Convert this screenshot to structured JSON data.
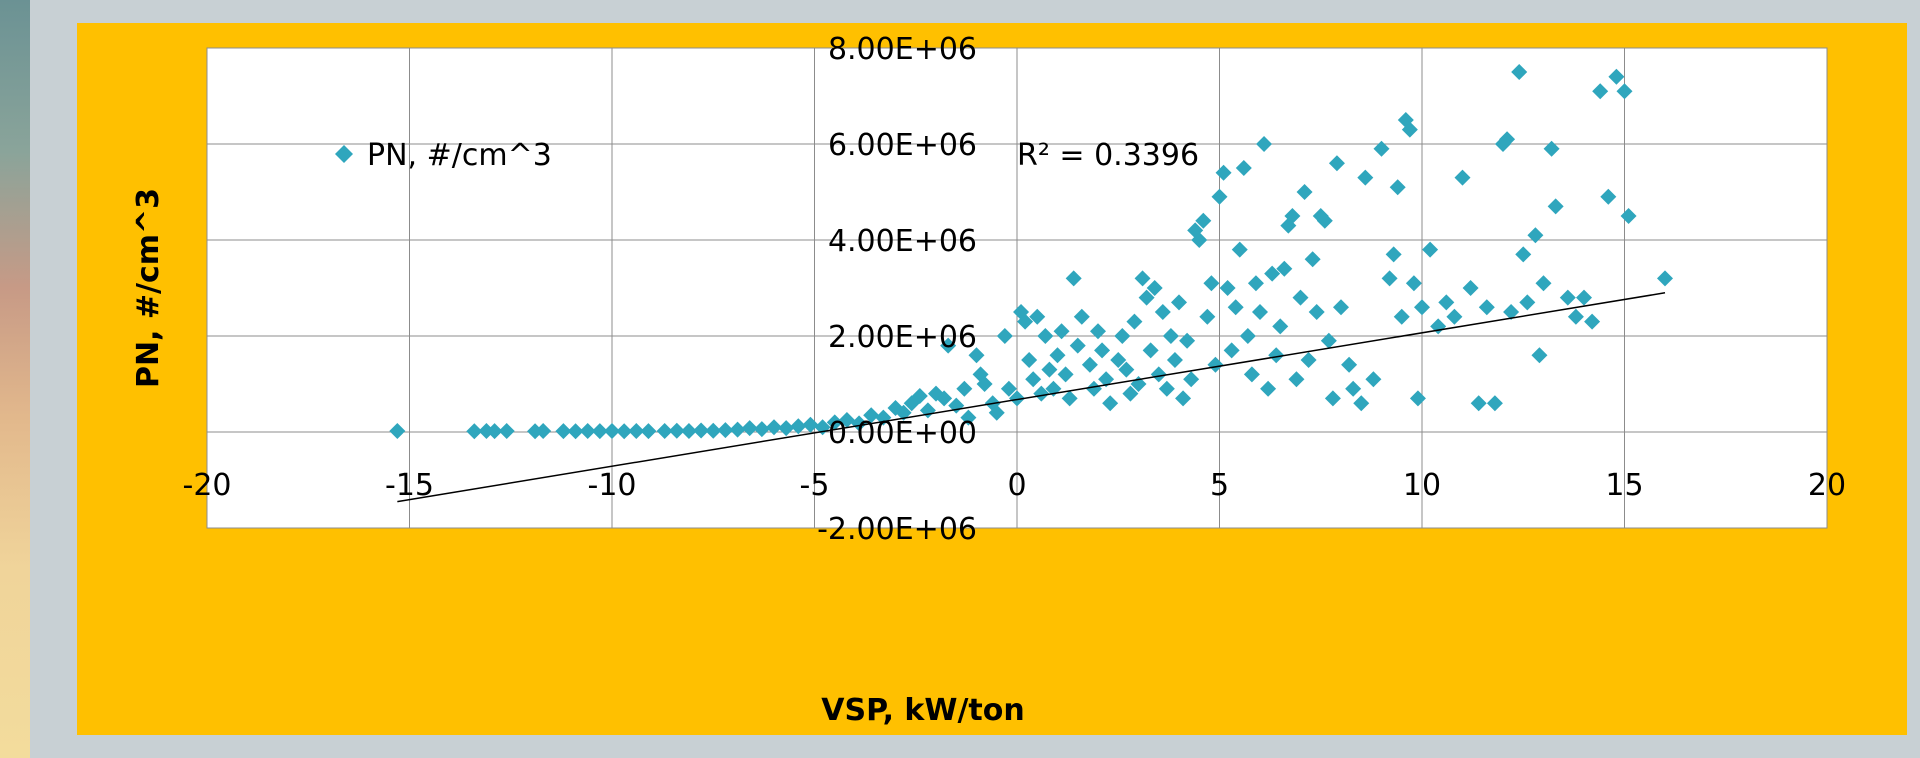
{
  "chart_data": {
    "type": "scatter",
    "title": "",
    "xlabel": "VSP, kW/ton",
    "ylabel": "PN, #/cm^3",
    "xlim": [
      -20,
      20
    ],
    "ylim": [
      -2000000,
      8000000
    ],
    "x_ticks": [
      -20,
      -15,
      -10,
      -5,
      0,
      5,
      10,
      15,
      20
    ],
    "x_tick_labels": [
      "-20",
      "-15",
      "-10",
      "-5",
      "0",
      "5",
      "10",
      "15",
      "20"
    ],
    "y_ticks": [
      -2000000,
      0,
      2000000,
      4000000,
      6000000,
      8000000
    ],
    "y_tick_labels": [
      "-2.00E+06",
      "0.00E+00",
      "2.00E+06",
      "4.00E+06",
      "6.00E+06",
      "8.00E+06"
    ],
    "grid": true,
    "legend_position": "top-left",
    "series_color": "#2fa6bd",
    "series": [
      {
        "name": "PN, #/cm^3",
        "marker": "diamond",
        "points": [
          [
            -15.3,
            20000
          ],
          [
            -13.4,
            15000
          ],
          [
            -13.1,
            20000
          ],
          [
            -12.9,
            18000
          ],
          [
            -12.6,
            20000
          ],
          [
            -11.9,
            15000
          ],
          [
            -11.7,
            20000
          ],
          [
            -11.2,
            18000
          ],
          [
            -10.9,
            15000
          ],
          [
            -10.6,
            20000
          ],
          [
            -10.3,
            18000
          ],
          [
            -10.0,
            20000
          ],
          [
            -9.7,
            15000
          ],
          [
            -9.4,
            20000
          ],
          [
            -9.1,
            18000
          ],
          [
            -8.7,
            20000
          ],
          [
            -8.4,
            25000
          ],
          [
            -8.1,
            20000
          ],
          [
            -7.8,
            30000
          ],
          [
            -7.5,
            25000
          ],
          [
            -7.2,
            40000
          ],
          [
            -6.9,
            50000
          ],
          [
            -6.6,
            80000
          ],
          [
            -6.3,
            60000
          ],
          [
            -6.0,
            100000
          ],
          [
            -5.7,
            80000
          ],
          [
            -5.4,
            120000
          ],
          [
            -5.1,
            150000
          ],
          [
            -4.8,
            100000
          ],
          [
            -4.5,
            200000
          ],
          [
            -4.2,
            250000
          ],
          [
            -3.9,
            180000
          ],
          [
            -3.6,
            350000
          ],
          [
            -3.3,
            300000
          ],
          [
            -3.0,
            500000
          ],
          [
            -2.8,
            400000
          ],
          [
            -2.6,
            600000
          ],
          [
            -2.4,
            750000
          ],
          [
            -2.2,
            450000
          ],
          [
            -2.0,
            800000
          ],
          [
            -1.8,
            700000
          ],
          [
            -1.7,
            1800000
          ],
          [
            -1.5,
            550000
          ],
          [
            -1.3,
            900000
          ],
          [
            -1.2,
            300000
          ],
          [
            -1.0,
            1600000
          ],
          [
            -0.9,
            1200000
          ],
          [
            -0.8,
            1000000
          ],
          [
            -0.6,
            600000
          ],
          [
            -0.5,
            400000
          ],
          [
            -0.3,
            2000000
          ],
          [
            -0.2,
            900000
          ],
          [
            0.0,
            700000
          ],
          [
            0.1,
            2500000
          ],
          [
            0.2,
            2300000
          ],
          [
            0.3,
            1500000
          ],
          [
            0.4,
            1100000
          ],
          [
            0.5,
            2400000
          ],
          [
            0.6,
            800000
          ],
          [
            0.7,
            2000000
          ],
          [
            0.8,
            1300000
          ],
          [
            0.9,
            900000
          ],
          [
            1.0,
            1600000
          ],
          [
            1.1,
            2100000
          ],
          [
            1.2,
            1200000
          ],
          [
            1.3,
            700000
          ],
          [
            1.4,
            3200000
          ],
          [
            1.5,
            1800000
          ],
          [
            1.6,
            2400000
          ],
          [
            1.8,
            1400000
          ],
          [
            1.9,
            900000
          ],
          [
            2.0,
            2100000
          ],
          [
            2.1,
            1700000
          ],
          [
            2.2,
            1100000
          ],
          [
            2.3,
            600000
          ],
          [
            2.5,
            1500000
          ],
          [
            2.6,
            2000000
          ],
          [
            2.7,
            1300000
          ],
          [
            2.8,
            800000
          ],
          [
            2.9,
            2300000
          ],
          [
            3.0,
            1000000
          ],
          [
            3.1,
            3200000
          ],
          [
            3.2,
            2800000
          ],
          [
            3.3,
            1700000
          ],
          [
            3.4,
            3000000
          ],
          [
            3.5,
            1200000
          ],
          [
            3.6,
            2500000
          ],
          [
            3.7,
            900000
          ],
          [
            3.8,
            2000000
          ],
          [
            3.9,
            1500000
          ],
          [
            4.0,
            2700000
          ],
          [
            4.1,
            700000
          ],
          [
            4.2,
            1900000
          ],
          [
            4.3,
            1100000
          ],
          [
            4.4,
            4200000
          ],
          [
            4.5,
            4000000
          ],
          [
            4.6,
            4400000
          ],
          [
            4.7,
            2400000
          ],
          [
            4.8,
            3100000
          ],
          [
            4.9,
            1400000
          ],
          [
            5.0,
            4900000
          ],
          [
            5.1,
            5400000
          ],
          [
            5.2,
            3000000
          ],
          [
            5.3,
            1700000
          ],
          [
            5.4,
            2600000
          ],
          [
            5.5,
            3800000
          ],
          [
            5.6,
            5500000
          ],
          [
            5.7,
            2000000
          ],
          [
            5.8,
            1200000
          ],
          [
            5.9,
            3100000
          ],
          [
            6.0,
            2500000
          ],
          [
            6.1,
            6000000
          ],
          [
            6.2,
            900000
          ],
          [
            6.3,
            3300000
          ],
          [
            6.4,
            1600000
          ],
          [
            6.5,
            2200000
          ],
          [
            6.6,
            3400000
          ],
          [
            6.7,
            4300000
          ],
          [
            6.8,
            4500000
          ],
          [
            6.9,
            1100000
          ],
          [
            7.0,
            2800000
          ],
          [
            7.1,
            5000000
          ],
          [
            7.2,
            1500000
          ],
          [
            7.3,
            3600000
          ],
          [
            7.4,
            2500000
          ],
          [
            7.5,
            4500000
          ],
          [
            7.6,
            4400000
          ],
          [
            7.7,
            1900000
          ],
          [
            7.8,
            700000
          ],
          [
            7.9,
            5600000
          ],
          [
            8.0,
            2600000
          ],
          [
            8.2,
            1400000
          ],
          [
            8.3,
            900000
          ],
          [
            8.5,
            600000
          ],
          [
            8.6,
            5300000
          ],
          [
            8.8,
            1100000
          ],
          [
            9.0,
            5900000
          ],
          [
            9.2,
            3200000
          ],
          [
            9.3,
            3700000
          ],
          [
            9.4,
            5100000
          ],
          [
            9.5,
            2400000
          ],
          [
            9.6,
            6500000
          ],
          [
            9.7,
            6300000
          ],
          [
            9.8,
            3100000
          ],
          [
            9.9,
            700000
          ],
          [
            10.0,
            2600000
          ],
          [
            10.2,
            3800000
          ],
          [
            10.4,
            2200000
          ],
          [
            10.6,
            2700000
          ],
          [
            10.8,
            2400000
          ],
          [
            11.0,
            5300000
          ],
          [
            11.2,
            3000000
          ],
          [
            11.4,
            600000
          ],
          [
            11.6,
            2600000
          ],
          [
            11.8,
            600000
          ],
          [
            12.0,
            6000000
          ],
          [
            12.1,
            6100000
          ],
          [
            12.2,
            2500000
          ],
          [
            12.4,
            7500000
          ],
          [
            12.5,
            3700000
          ],
          [
            12.6,
            2700000
          ],
          [
            12.8,
            4100000
          ],
          [
            12.9,
            1600000
          ],
          [
            13.0,
            3100000
          ],
          [
            13.2,
            5900000
          ],
          [
            13.3,
            4700000
          ],
          [
            13.6,
            2800000
          ],
          [
            13.8,
            2400000
          ],
          [
            14.0,
            2800000
          ],
          [
            14.2,
            2300000
          ],
          [
            14.4,
            7100000
          ],
          [
            14.6,
            4900000
          ],
          [
            14.8,
            7400000
          ],
          [
            15.0,
            7100000
          ],
          [
            15.1,
            4500000
          ],
          [
            16.0,
            3200000
          ]
        ]
      }
    ],
    "trendline": {
      "type": "linear",
      "points": [
        [
          -15.3,
          -1450000
        ],
        [
          16.0,
          2900000
        ]
      ],
      "r_squared_label": "R² = 0.3396"
    }
  }
}
